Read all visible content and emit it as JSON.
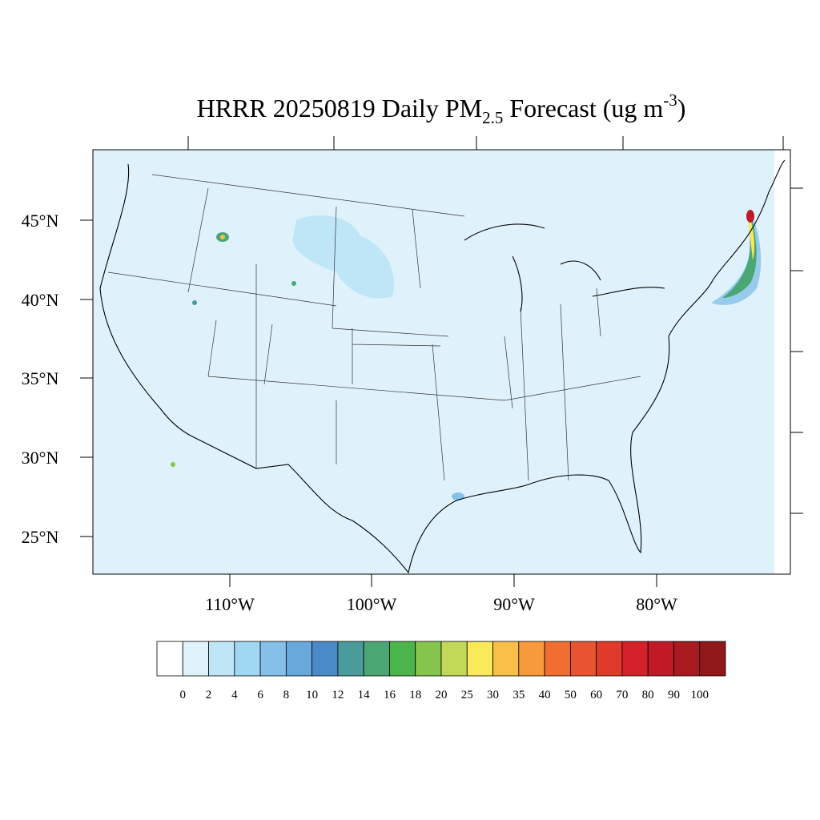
{
  "title": {
    "main": "HRRR 20250819 Daily PM",
    "sub": "2.5",
    "middle": " Forecast (ug m",
    "sup": "-3",
    "end": ")"
  },
  "map": {
    "lat_labels": [
      "45°N",
      "40°N",
      "35°N",
      "30°N",
      "25°N"
    ],
    "lon_labels": [
      "110°W",
      "100°W",
      "90°W",
      "80°W"
    ]
  },
  "colorbar": {
    "levels": [
      0,
      2,
      4,
      6,
      8,
      10,
      12,
      14,
      16,
      18,
      20,
      25,
      30,
      35,
      40,
      50,
      60,
      70,
      80,
      90,
      100
    ],
    "colors": [
      "#ffffff",
      "#e0f3fb",
      "#bfe6f7",
      "#a0d8f3",
      "#84c0e8",
      "#68a8db",
      "#4a8ac8",
      "#4a9b9b",
      "#4aa673",
      "#4bb44b",
      "#85c54e",
      "#c2d957",
      "#f8e85a",
      "#f8c048",
      "#f89a3c",
      "#f06e30",
      "#e85430",
      "#e03a2a",
      "#d42129",
      "#c01a27",
      "#a81a20",
      "#901818"
    ]
  }
}
